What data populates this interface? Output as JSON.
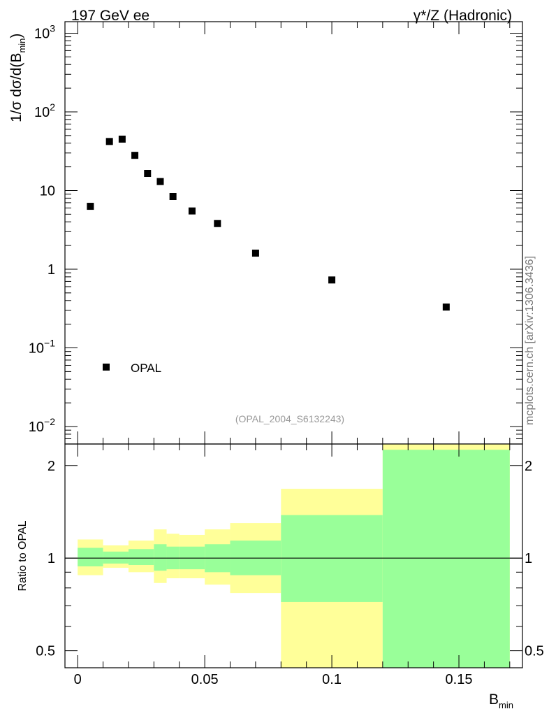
{
  "header": {
    "left": "197 GeV ee",
    "right": "γ*/Z (Hadronic)"
  },
  "watermark": "mcplots.cern.ch [arXiv:1306.3436]",
  "analysis_tag": "(OPAL_2004_S6132243)",
  "colors": {
    "band_outer": "#ffff99",
    "band_inner": "#99ff99",
    "marker": "#000000"
  },
  "chart_data": [
    {
      "type": "scatter",
      "panel": "main",
      "ylabel": {
        "main": "1/σ dσ/d(B",
        "sub": "min",
        "close": ")"
      },
      "yscale": "log",
      "ylim": [
        0.006,
        1400
      ],
      "xlim": [
        -0.005,
        0.175
      ],
      "y_tick_labels": [
        {
          "value": 1000,
          "base": "10",
          "exp": "3"
        },
        {
          "value": 100,
          "base": "10",
          "exp": "2"
        },
        {
          "value": 10,
          "base": "10",
          "exp": ""
        },
        {
          "value": 1,
          "base": "1",
          "exp": ""
        },
        {
          "value": 0.1,
          "base": "10",
          "exp": "−1"
        },
        {
          "value": 0.01,
          "base": "10",
          "exp": "−2"
        }
      ],
      "legend": {
        "label": "OPAL",
        "position": "bottom-left"
      },
      "series": [
        {
          "name": "OPAL",
          "points": [
            {
              "x": 0.005,
              "y": 6.3
            },
            {
              "x": 0.0125,
              "y": 42
            },
            {
              "x": 0.0175,
              "y": 45
            },
            {
              "x": 0.0225,
              "y": 28
            },
            {
              "x": 0.0275,
              "y": 16.5
            },
            {
              "x": 0.0325,
              "y": 13
            },
            {
              "x": 0.0375,
              "y": 8.4
            },
            {
              "x": 0.045,
              "y": 5.5
            },
            {
              "x": 0.055,
              "y": 3.8
            },
            {
              "x": 0.07,
              "y": 1.6
            },
            {
              "x": 0.1,
              "y": 0.73
            },
            {
              "x": 0.145,
              "y": 0.33
            }
          ]
        }
      ]
    },
    {
      "type": "area",
      "panel": "ratio",
      "ylabel": "Ratio to OPAL",
      "xlabel": {
        "main": "B",
        "sub": "min"
      },
      "yscale": "log",
      "ylim": [
        0.44,
        2.35
      ],
      "xlim": [
        -0.005,
        0.175
      ],
      "x_ticks": [
        {
          "value": 0,
          "label": "0"
        },
        {
          "value": 0.05,
          "label": "0.05"
        },
        {
          "value": 0.1,
          "label": "0.1"
        },
        {
          "value": 0.15,
          "label": "0.15"
        }
      ],
      "y_ticks": [
        {
          "value": 2,
          "label": "2"
        },
        {
          "value": 1,
          "label": "1"
        },
        {
          "value": 0.5,
          "label": "0.5"
        }
      ],
      "reference_line": 1,
      "bins": [
        {
          "lo": 0.0,
          "hi": 0.01,
          "outer": [
            0.88,
            1.15
          ],
          "inner": [
            0.94,
            1.08
          ]
        },
        {
          "lo": 0.01,
          "hi": 0.02,
          "outer": [
            0.93,
            1.1
          ],
          "inner": [
            0.96,
            1.05
          ]
        },
        {
          "lo": 0.02,
          "hi": 0.03,
          "outer": [
            0.9,
            1.14
          ],
          "inner": [
            0.95,
            1.07
          ]
        },
        {
          "lo": 0.03,
          "hi": 0.035,
          "outer": [
            0.83,
            1.24
          ],
          "inner": [
            0.91,
            1.11
          ]
        },
        {
          "lo": 0.035,
          "hi": 0.04,
          "outer": [
            0.86,
            1.2
          ],
          "inner": [
            0.92,
            1.09
          ]
        },
        {
          "lo": 0.04,
          "hi": 0.05,
          "outer": [
            0.86,
            1.19
          ],
          "inner": [
            0.92,
            1.09
          ]
        },
        {
          "lo": 0.05,
          "hi": 0.06,
          "outer": [
            0.82,
            1.24
          ],
          "inner": [
            0.9,
            1.11
          ]
        },
        {
          "lo": 0.06,
          "hi": 0.08,
          "outer": [
            0.77,
            1.3
          ],
          "inner": [
            0.88,
            1.14
          ]
        },
        {
          "lo": 0.08,
          "hi": 0.12,
          "outer": [
            0.42,
            1.68
          ],
          "inner": [
            0.72,
            1.38
          ]
        },
        {
          "lo": 0.12,
          "hi": 0.17,
          "outer": [
            0.42,
            2.4
          ],
          "inner": [
            0.42,
            2.25
          ]
        }
      ]
    }
  ]
}
